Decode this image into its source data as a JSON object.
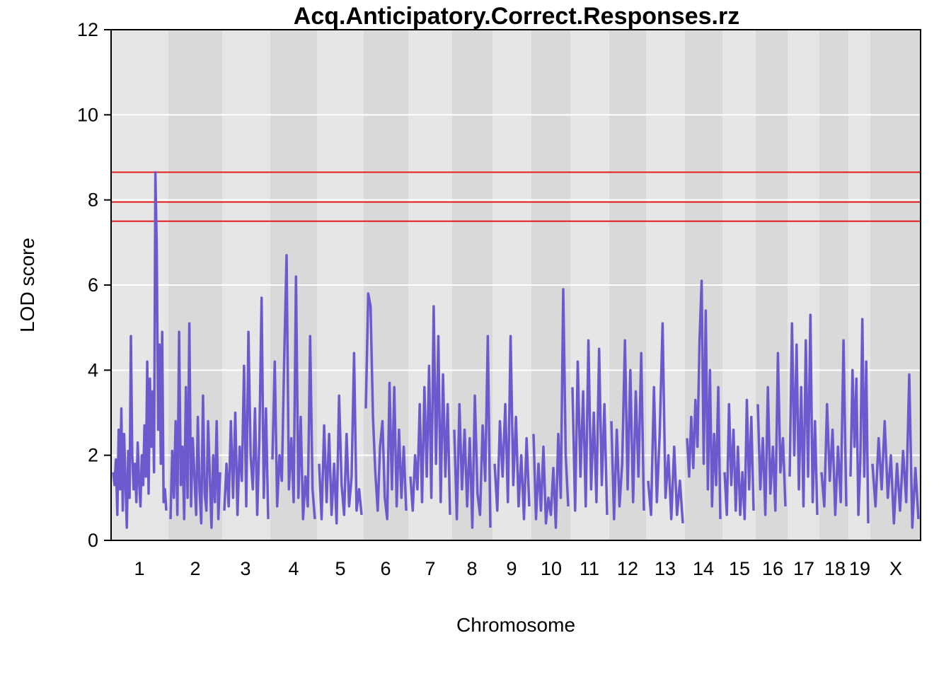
{
  "chart_data": {
    "type": "line",
    "title": "Acq.Anticipatory.Correct.Responses.rz",
    "xlabel": "Chromosome",
    "ylabel": "LOD score",
    "ylim": [
      0,
      12
    ],
    "yticks": [
      0,
      2,
      4,
      6,
      8,
      10,
      12
    ],
    "grid": true,
    "chromosomes": [
      "1",
      "2",
      "3",
      "4",
      "5",
      "6",
      "7",
      "8",
      "9",
      "10",
      "11",
      "12",
      "13",
      "14",
      "15",
      "16",
      "17",
      "18",
      "19",
      "X"
    ],
    "thresholds": [
      8.65,
      7.95,
      7.5
    ],
    "threshold_color": "#e41a1c",
    "series_color": "#6a5acd",
    "series": [
      {
        "values_by_chromosome": [
          [
            1.6,
            1.3,
            1.9,
            0.6,
            2.6,
            1.2,
            3.1,
            0.7,
            2.5,
            1.4,
            0.3,
            2.1,
            1.0,
            4.8,
            2.0,
            1.2,
            1.8,
            0.9,
            2.3,
            1.4,
            0.8,
            2.0,
            1.3,
            2.7,
            1.5,
            4.2,
            1.1,
            3.8,
            2.2,
            3.5,
            1.6,
            8.65,
            6.9,
            2.6,
            4.6,
            1.8,
            4.9,
            0.9,
            1.2,
            0.7
          ],
          [
            0.5,
            2.1,
            1.0,
            2.8,
            0.6,
            4.9,
            1.3,
            2.2,
            0.5,
            3.6,
            1.0,
            5.1,
            0.8,
            2.4,
            1.5,
            0.6,
            2.9,
            1.2,
            0.4,
            3.4,
            1.1,
            0.7,
            2.8,
            1.5,
            0.3,
            2.0,
            0.9,
            2.8,
            0.5,
            1.6
          ],
          [
            0.7,
            1.8,
            0.8,
            2.8,
            1.0,
            3.0,
            0.6,
            2.2,
            1.4,
            4.1,
            0.8,
            4.9,
            2.0,
            1.2,
            3.1,
            0.6,
            2.4,
            5.7,
            1.0,
            3.1,
            0.5
          ],
          [
            1.9,
            4.2,
            0.8,
            2.0,
            1.4,
            4.3,
            6.7,
            1.2,
            2.4,
            0.9,
            6.2,
            1.0,
            2.9,
            0.5,
            1.5,
            0.8,
            4.8,
            1.2,
            0.5
          ],
          [
            1.8,
            0.5,
            2.7,
            0.9,
            2.5,
            0.6,
            1.8,
            0.4,
            3.4,
            1.3,
            0.6,
            2.5,
            0.8,
            1.5,
            4.4,
            0.7,
            1.2,
            0.6
          ],
          [
            3.1,
            5.8,
            5.5,
            2.9,
            1.6,
            0.7,
            2.2,
            2.8,
            1.0,
            0.5,
            3.7,
            1.2,
            3.6,
            0.8,
            2.6,
            1.0,
            2.2,
            0.7
          ],
          [
            1.5,
            0.7,
            2.0,
            1.2,
            3.2,
            0.9,
            3.6,
            1.5,
            4.1,
            1.0,
            5.5,
            1.8,
            4.8,
            0.9,
            3.9,
            1.5,
            3.2,
            0.6
          ],
          [
            2.6,
            0.5,
            3.2,
            1.2,
            2.6,
            0.8,
            2.4,
            0.3,
            3.4,
            1.1,
            0.6,
            2.7,
            1.4,
            4.8,
            0.3
          ],
          [
            1.8,
            0.7,
            2.8,
            1.5,
            3.2,
            0.9,
            4.8,
            1.3,
            2.9,
            0.8,
            2.0,
            0.5,
            2.4,
            0.8
          ],
          [
            2.5,
            0.5,
            1.8,
            0.7,
            2.2,
            0.4,
            1.0,
            0.6,
            1.7,
            0.3,
            2.5,
            1.0,
            5.9,
            2.0,
            0.8
          ],
          [
            3.6,
            0.7,
            4.2,
            1.5,
            3.5,
            0.8,
            4.7,
            1.2,
            3.0,
            0.9,
            4.5,
            1.3,
            3.2,
            0.6
          ],
          [
            2.8,
            0.5,
            2.6,
            0.8,
            1.8,
            4.7,
            1.2,
            4.0,
            0.9,
            3.5,
            1.5,
            4.4,
            0.7
          ],
          [
            1.4,
            0.6,
            3.6,
            0.9,
            2.5,
            5.1,
            1.0,
            2.0,
            0.5,
            2.2,
            0.6,
            1.4,
            0.4
          ],
          [
            2.4,
            1.5,
            2.9,
            1.7,
            3.3,
            2.2,
            4.7,
            6.1,
            1.8,
            5.4,
            1.2,
            4.0,
            0.8,
            2.5,
            1.3,
            3.6,
            0.5
          ],
          [
            1.6,
            0.6,
            3.2,
            1.3,
            2.6,
            0.7,
            2.2,
            0.6,
            1.6,
            0.5,
            3.3,
            1.2,
            2.9,
            0.7
          ],
          [
            3.2,
            1.2,
            2.4,
            0.6,
            3.6,
            1.1,
            2.2,
            0.7,
            4.4,
            1.6,
            2.4,
            0.8
          ],
          [
            1.5,
            5.1,
            2.0,
            4.6,
            1.2,
            3.6,
            0.8,
            4.7,
            1.5,
            5.3,
            0.9,
            2.8,
            0.6
          ],
          [
            1.6,
            0.8,
            3.2,
            1.4,
            2.6,
            0.6,
            2.2,
            0.9,
            4.7,
            0.8
          ],
          [
            1.5,
            4.0,
            2.2,
            3.8,
            0.6,
            1.9,
            5.2,
            1.5,
            4.2,
            0.4
          ],
          [
            1.8,
            0.8,
            2.4,
            1.2,
            2.8,
            1.0,
            2.0,
            0.4,
            1.8,
            0.7,
            2.1,
            0.9,
            3.9,
            0.3,
            1.7,
            0.5
          ]
        ]
      }
    ]
  }
}
